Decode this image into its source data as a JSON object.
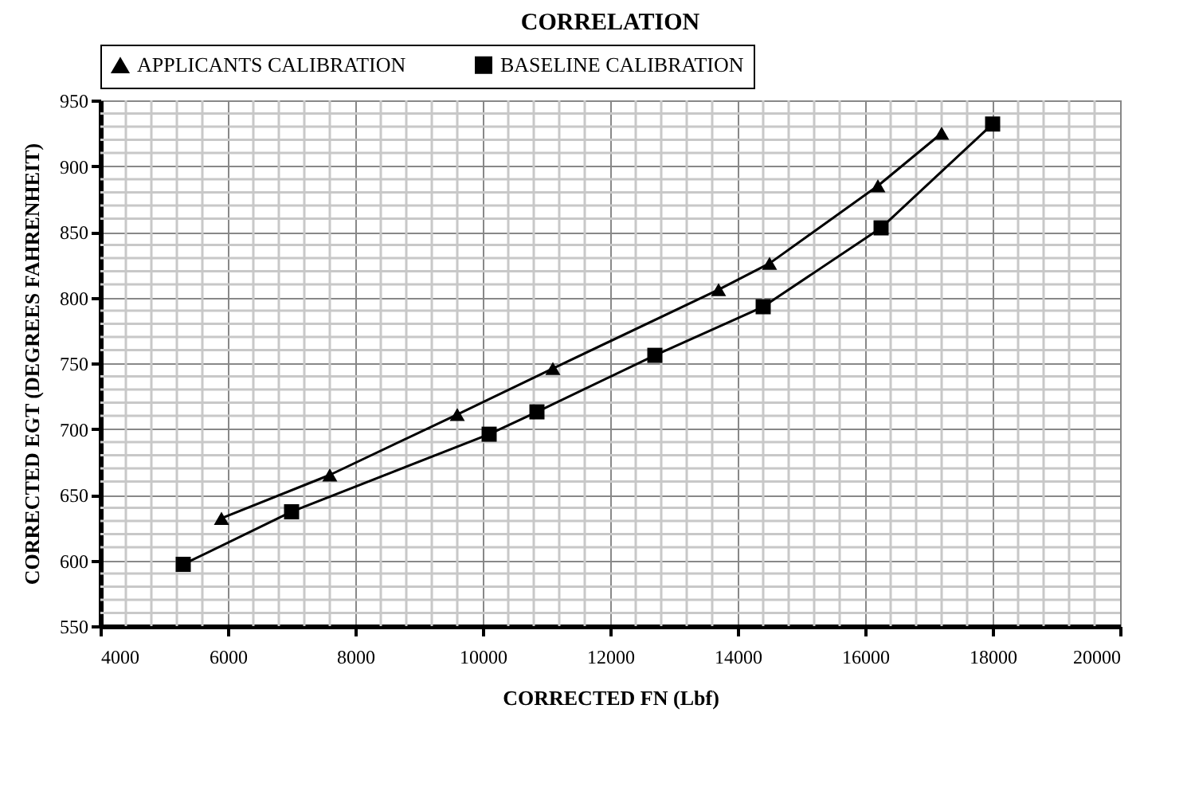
{
  "chart_data": {
    "type": "line",
    "title": "CORRELATION",
    "xlabel": "CORRECTED FN (Lbf)",
    "ylabel": "CORRECTED EGT (DEGREES FAHRENHEIT)",
    "xlim": [
      4000,
      20000
    ],
    "xticks": [
      4000,
      6000,
      8000,
      10000,
      12000,
      14000,
      16000,
      18000,
      20000
    ],
    "ylim": [
      550,
      950
    ],
    "yticks": [
      550,
      600,
      650,
      700,
      750,
      800,
      850,
      900,
      950
    ],
    "grid": true,
    "legend": "top",
    "series": [
      {
        "name": "APPLICANTS CALIBRATION",
        "color": "#000000",
        "marker": "triangle",
        "x": [
          5900,
          7600,
          9600,
          11100,
          13700,
          14500,
          16200,
          17200
        ],
        "values": [
          632,
          665,
          711,
          746,
          806,
          826,
          885,
          925
        ]
      },
      {
        "name": "BASELINE CALIBRATION",
        "color": "#000000",
        "marker": "square",
        "x": [
          5300,
          7000,
          10100,
          10850,
          12700,
          14400,
          16250,
          18000
        ],
        "values": [
          597,
          637,
          696,
          713,
          756,
          793,
          853,
          932
        ]
      }
    ]
  }
}
